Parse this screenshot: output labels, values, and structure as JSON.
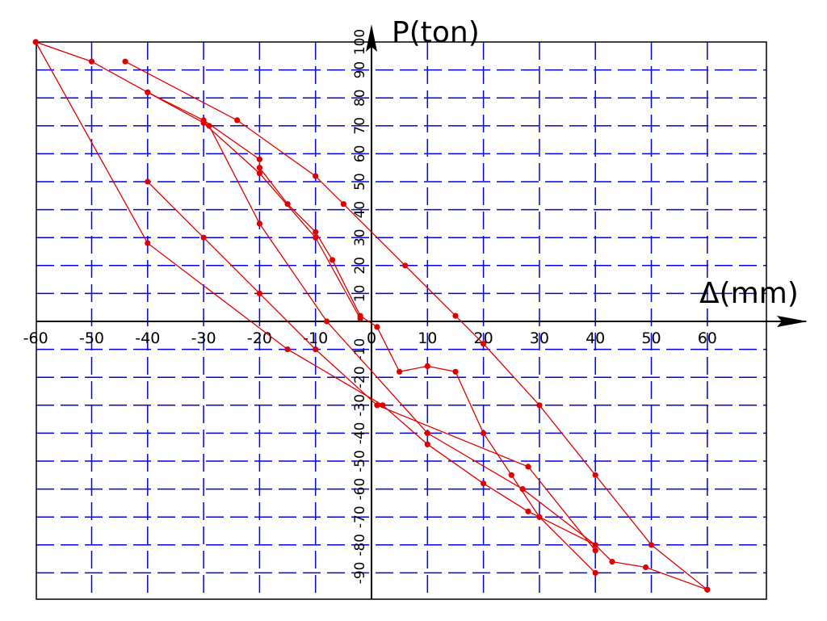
{
  "chart_data": {
    "type": "line",
    "title": "",
    "xlabel": "Δ(mm)",
    "ylabel": "P(ton)",
    "xlim": [
      -60,
      70
    ],
    "ylim": [
      -100,
      100
    ],
    "grid": true,
    "x_ticks": [
      "-60",
      "-50",
      "-40",
      "-30",
      "-20",
      "-10",
      "0",
      "10",
      "20",
      "30",
      "40",
      "50",
      "60"
    ],
    "y_ticks": [
      "100",
      "90",
      "80",
      "70",
      "60",
      "50",
      "40",
      "30",
      "20",
      "10",
      "-10",
      "-20",
      "-30",
      "-40",
      "-50",
      "-60",
      "-70",
      "-80",
      "-90"
    ],
    "series": [
      {
        "name": "",
        "points": [
          [
            -60,
            100
          ],
          [
            -50,
            93
          ],
          [
            -40,
            82
          ],
          [
            -30,
            72
          ],
          [
            -20,
            58
          ],
          [
            -20,
            55
          ],
          [
            -15,
            42
          ],
          [
            -10,
            32
          ],
          [
            -7,
            22
          ],
          [
            -2,
            2
          ],
          [
            1,
            -2
          ],
          [
            5,
            -18
          ],
          [
            10,
            -16
          ],
          [
            15,
            -18
          ],
          [
            20,
            -40
          ],
          [
            25,
            -55
          ],
          [
            30,
            -70
          ],
          [
            40,
            -90
          ]
        ]
      },
      {
        "name": "",
        "points": [
          [
            -44,
            93
          ],
          [
            -24,
            72
          ],
          [
            -10,
            52
          ],
          [
            -5,
            42
          ],
          [
            6,
            20
          ],
          [
            15,
            2
          ],
          [
            20,
            -8
          ],
          [
            30,
            -30
          ],
          [
            40,
            -55
          ],
          [
            50,
            -80
          ],
          [
            60,
            -96
          ]
        ]
      },
      {
        "name": "",
        "points": [
          [
            60,
            -96
          ],
          [
            49,
            -88
          ],
          [
            43,
            -86
          ],
          [
            40,
            -80
          ],
          [
            28,
            -68
          ],
          [
            20,
            -58
          ],
          [
            10,
            -44
          ],
          [
            2,
            -30
          ],
          [
            -15,
            -10
          ],
          [
            -40,
            28
          ],
          [
            -60,
            100
          ]
        ]
      },
      {
        "name": "",
        "points": [
          [
            -40,
            82
          ],
          [
            -29,
            70
          ],
          [
            -20,
            35
          ],
          [
            -8,
            0
          ],
          [
            10,
            -40
          ],
          [
            27,
            -60
          ],
          [
            40,
            -80
          ]
        ]
      },
      {
        "name": "",
        "points": [
          [
            -40,
            50
          ],
          [
            -30,
            30
          ],
          [
            -20,
            10
          ],
          [
            -10,
            -10
          ],
          [
            1,
            -30
          ],
          [
            28,
            -52
          ],
          [
            40,
            -82
          ]
        ]
      },
      {
        "name": "",
        "points": [
          [
            -30,
            71
          ],
          [
            -20,
            53
          ],
          [
            -10,
            30
          ],
          [
            -2,
            1
          ]
        ]
      }
    ]
  }
}
